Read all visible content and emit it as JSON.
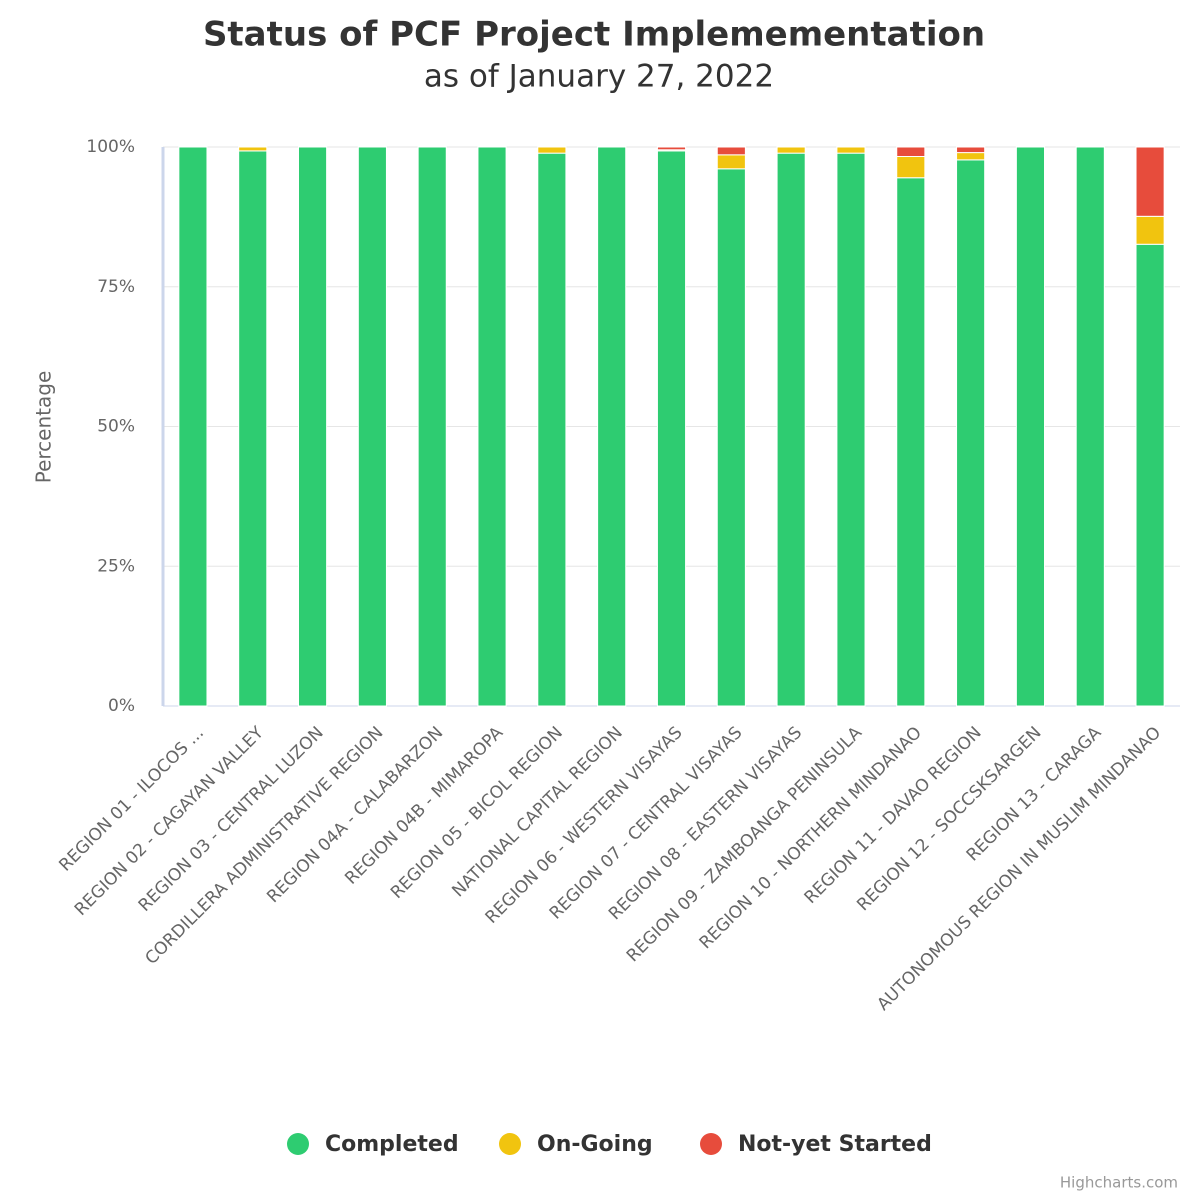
{
  "chart_data": {
    "type": "stacked_percent_bar",
    "title": "Status of PCF Project Implemementation",
    "subtitle": "as of January 27, 2022",
    "y_axis_label": "Percentage",
    "credits": "Highcharts.com",
    "categories": [
      "REGION 01 - ILOCOS ...",
      "REGION 02 - CAGAYAN VALLEY",
      "REGION 03 - CENTRAL LUZON",
      "CORDILLERA ADMINISTRATIVE REGION",
      "REGION 04A - CALABARZON",
      "REGION 04B - MIMAROPA",
      "REGION 05 - BICOL REGION",
      "NATIONAL CAPITAL REGION",
      "REGION 06 - WESTERN VISAYAS",
      "REGION 07 - CENTRAL VISAYAS",
      "REGION 08 - EASTERN VISAYAS",
      "REGION 09 - ZAMBOANGA PENINSULA",
      "REGION 10 - NORTHERN MINDANAO",
      "REGION 11 - DAVAO REGION",
      "REGION 12 - SOCCSKSARGEN",
      "REGION 13 - CARAGA",
      "AUTONOMOUS REGION IN MUSLIM MINDANAO"
    ],
    "series": [
      {
        "name": "Completed",
        "color": "#2ecc71",
        "values": [
          100,
          99.3,
          100,
          100,
          100,
          100,
          98.9,
          100,
          99.3,
          96.1,
          98.9,
          98.9,
          94.5,
          97.7,
          100,
          100,
          82.6
        ]
      },
      {
        "name": "On-Going",
        "color": "#f1c40f",
        "values": [
          0,
          0.7,
          0,
          0,
          0,
          0,
          1.1,
          0,
          0.2,
          2.5,
          1.1,
          1.1,
          3.8,
          1.3,
          0,
          0,
          5.0
        ]
      },
      {
        "name": "Not-yet Started",
        "color": "#e74c3c",
        "values": [
          0,
          0,
          0,
          0,
          0,
          0,
          0,
          0,
          0.5,
          1.4,
          0,
          0,
          1.7,
          1.0,
          0,
          0,
          12.4
        ]
      }
    ],
    "ylim": [
      0,
      100
    ],
    "yticks": [
      {
        "value": 0,
        "label": "0%"
      },
      {
        "value": 25,
        "label": "25%"
      },
      {
        "value": 50,
        "label": "50%"
      },
      {
        "value": 75,
        "label": "75%"
      },
      {
        "value": 100,
        "label": "100%"
      }
    ],
    "grid": true
  }
}
